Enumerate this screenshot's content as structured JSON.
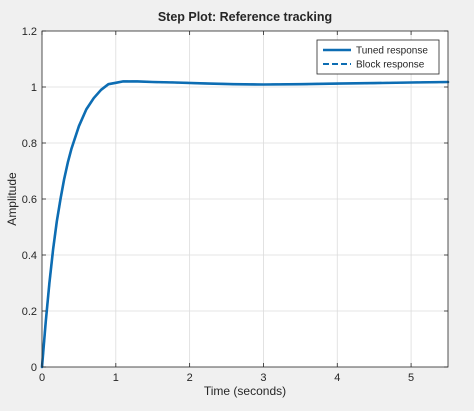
{
  "chart_data": {
    "type": "line",
    "title": "Step Plot: Reference tracking",
    "xlabel": "Time (seconds)",
    "ylabel": "Amplitude",
    "xlim": [
      0,
      5.5
    ],
    "ylim": [
      0,
      1.2
    ],
    "xticks": [
      0,
      1,
      2,
      3,
      4,
      5
    ],
    "xtick_labels": [
      "0",
      "1",
      "2",
      "3",
      "4",
      "5"
    ],
    "yticks": [
      0,
      0.2,
      0.4,
      0.6,
      0.8,
      1,
      1.2
    ],
    "ytick_labels": [
      "0",
      "0.2",
      "0.4",
      "0.6",
      "0.8",
      "1",
      "1.2"
    ],
    "grid": true,
    "legend_position": "top-right",
    "series": [
      {
        "name": "Tuned response",
        "style": "solid",
        "color": "#0d6db3",
        "x": [
          0,
          0.05,
          0.1,
          0.15,
          0.2,
          0.25,
          0.3,
          0.35,
          0.4,
          0.5,
          0.6,
          0.7,
          0.8,
          0.9,
          1.0,
          1.1,
          1.2,
          1.3,
          1.5,
          1.8,
          2.2,
          2.6,
          3.0,
          3.5,
          4.0,
          4.5,
          5.0,
          5.5
        ],
        "y": [
          0,
          0.16,
          0.3,
          0.42,
          0.52,
          0.6,
          0.67,
          0.73,
          0.78,
          0.86,
          0.92,
          0.96,
          0.99,
          1.01,
          1.015,
          1.02,
          1.02,
          1.02,
          1.018,
          1.016,
          1.013,
          1.01,
          1.009,
          1.01,
          1.012,
          1.014,
          1.016,
          1.018
        ]
      },
      {
        "name": "Block response",
        "style": "dashed",
        "color": "#0d6db3",
        "x": [
          0,
          0.05,
          0.1,
          0.15,
          0.2,
          0.25,
          0.3,
          0.35,
          0.4,
          0.5,
          0.6,
          0.7,
          0.8,
          0.9,
          1.0,
          1.1,
          1.2,
          1.3,
          1.5,
          1.8,
          2.2,
          2.6,
          3.0,
          3.5,
          4.0,
          4.5,
          5.0,
          5.5
        ],
        "y": [
          0,
          0.16,
          0.3,
          0.42,
          0.52,
          0.6,
          0.67,
          0.73,
          0.78,
          0.86,
          0.92,
          0.96,
          0.99,
          1.01,
          1.015,
          1.02,
          1.02,
          1.02,
          1.018,
          1.016,
          1.013,
          1.01,
          1.009,
          1.01,
          1.012,
          1.014,
          1.016,
          1.018
        ]
      }
    ]
  },
  "colors": {
    "figure_bg": "#f0f0f0",
    "axes_bg": "#ffffff",
    "axis": "#262626",
    "grid": "#dcdcdc",
    "text": "#262626"
  }
}
